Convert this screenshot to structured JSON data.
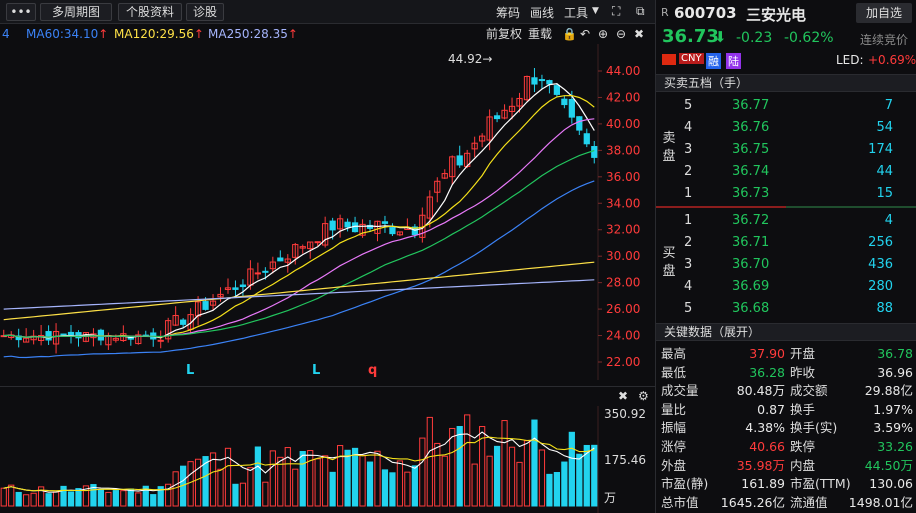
{
  "toolbar": {
    "menu_label": "•••",
    "period": "多周期图",
    "profile": "个股资料",
    "diagnose": "诊股",
    "chip": "筹码",
    "draw": "画线",
    "tools": "工具"
  },
  "legend": {
    "ma60": "MA60:34.10",
    "ma120": "MA120:29.56",
    "ma250": "MA250:28.35",
    "prefix": "4"
  },
  "controls": {
    "fq": "前复权",
    "overlay": "重载"
  },
  "price_axis": [
    "44.00",
    "42.00",
    "40.00",
    "38.00",
    "36.00",
    "34.00",
    "32.00",
    "30.00",
    "28.00",
    "26.00",
    "24.00",
    "22.00"
  ],
  "peak_label": "44.92→",
  "markers": [
    "L",
    "L",
    "q"
  ],
  "volume_axis": [
    "350.92",
    "175.46",
    "万"
  ],
  "colors": {
    "up": "#ff3b3b",
    "down": "#22d3ee",
    "ma5": "#ffffff",
    "ma10": "#f5e11a",
    "ma20": "#e879f9",
    "ma30": "#22c55e",
    "ma60": "#3b82f6",
    "ma120": "#fde047",
    "ma250": "#a5b4fc"
  },
  "stock": {
    "badge": "R",
    "code": "600703",
    "name": "三安光电",
    "add_btn": "加自选",
    "price": "36.73",
    "change": "-0.23",
    "pct": "-0.62%",
    "auction": "连续竞价",
    "flags": [
      "CNY",
      "融",
      "陆"
    ],
    "led_label": "LED:",
    "led_value": "+0.69%"
  },
  "orderbook": {
    "title": "买卖五档（手）",
    "sell_label": "卖盘",
    "buy_label": "买盘",
    "sells": [
      {
        "n": "5",
        "price": "36.77",
        "vol": "7"
      },
      {
        "n": "4",
        "price": "36.76",
        "vol": "54"
      },
      {
        "n": "3",
        "price": "36.75",
        "vol": "174"
      },
      {
        "n": "2",
        "price": "36.74",
        "vol": "44"
      },
      {
        "n": "1",
        "price": "36.73",
        "vol": "15"
      }
    ],
    "buys": [
      {
        "n": "1",
        "price": "36.72",
        "vol": "4"
      },
      {
        "n": "2",
        "price": "36.71",
        "vol": "256"
      },
      {
        "n": "3",
        "price": "36.70",
        "vol": "436"
      },
      {
        "n": "4",
        "price": "36.69",
        "vol": "280"
      },
      {
        "n": "5",
        "price": "36.68",
        "vol": "88"
      }
    ]
  },
  "keydata": {
    "title": "关键数据（展开）",
    "rows": [
      {
        "l1": "最高",
        "v1": "37.90",
        "c1": "red",
        "l2": "开盘",
        "v2": "36.78",
        "c2": "green"
      },
      {
        "l1": "最低",
        "v1": "36.28",
        "c1": "green",
        "l2": "昨收",
        "v2": "36.96",
        "c2": "white"
      },
      {
        "l1": "成交量",
        "v1": "80.48万",
        "c1": "white",
        "l2": "成交额",
        "v2": "29.88亿",
        "c2": "white"
      },
      {
        "l1": "量比",
        "v1": "0.87",
        "c1": "white",
        "l2": "换手",
        "v2": "1.97%",
        "c2": "white"
      },
      {
        "l1": "振幅",
        "v1": "4.38%",
        "c1": "white",
        "l2": "换手(实)",
        "v2": "3.59%",
        "c2": "white"
      },
      {
        "l1": "涨停",
        "v1": "40.66",
        "c1": "red",
        "l2": "跌停",
        "v2": "33.26",
        "c2": "green"
      },
      {
        "l1": "外盘",
        "v1": "35.98万",
        "c1": "red",
        "l2": "内盘",
        "v2": "44.50万",
        "c2": "green"
      },
      {
        "l1": "市盈(静)",
        "v1": "161.89",
        "c1": "white",
        "l2": "市盈(TTM)",
        "v2": "130.06",
        "c2": "white"
      },
      {
        "l1": "总市值",
        "v1": "1645.26亿",
        "c1": "white",
        "l2": "流通值",
        "v2": "1498.01亿",
        "c2": "white"
      }
    ]
  }
}
